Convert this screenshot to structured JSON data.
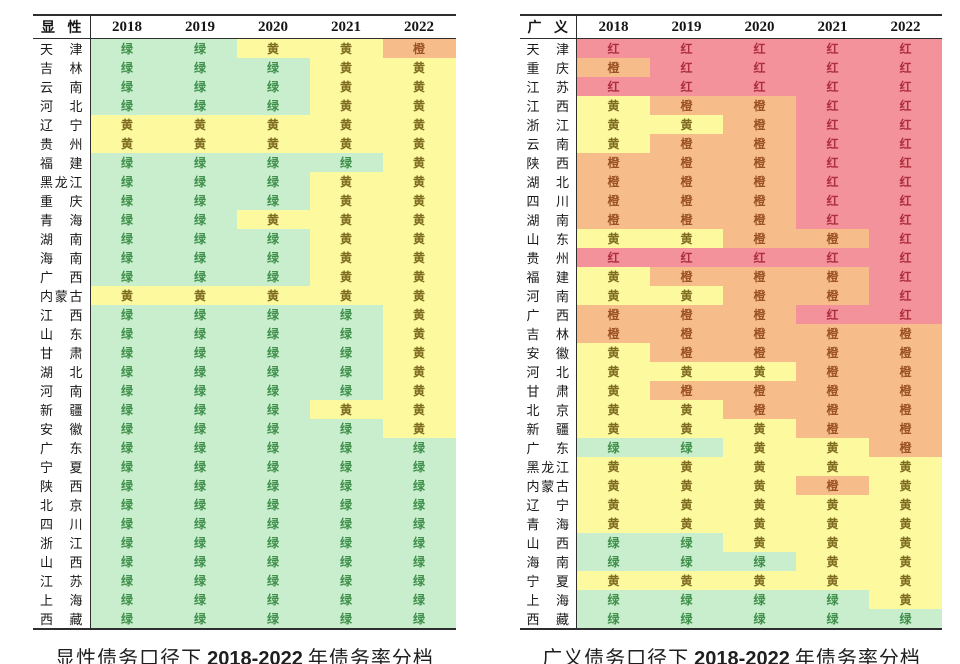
{
  "colors": {
    "绿": {
      "bg": "#c8eecd",
      "fg": "#3f8f4a"
    },
    "黄": {
      "bg": "#fcf99f",
      "fg": "#7d6b1f"
    },
    "橙": {
      "bg": "#f6bd8b",
      "fg": "#9b5226"
    },
    "红": {
      "bg": "#f4929b",
      "fg": "#ad2e3e"
    }
  },
  "chart_data": [
    {
      "type": "heatmap",
      "corner_label": "显性",
      "columns": [
        "2018",
        "2019",
        "2020",
        "2021",
        "2022"
      ],
      "legend": {
        "绿": "green",
        "黄": "yellow",
        "橙": "orange",
        "红": "red"
      },
      "caption": {
        "prefix": "显性债务口径下",
        "range": "2018-2022",
        "suffix": "年债务率分档"
      },
      "rows": [
        {
          "name": "天津",
          "grades": [
            "绿",
            "绿",
            "黄",
            "黄",
            "橙"
          ]
        },
        {
          "name": "吉林",
          "grades": [
            "绿",
            "绿",
            "绿",
            "黄",
            "黄"
          ]
        },
        {
          "name": "云南",
          "grades": [
            "绿",
            "绿",
            "绿",
            "黄",
            "黄"
          ]
        },
        {
          "name": "河北",
          "grades": [
            "绿",
            "绿",
            "绿",
            "黄",
            "黄"
          ]
        },
        {
          "name": "辽宁",
          "grades": [
            "黄",
            "黄",
            "黄",
            "黄",
            "黄"
          ]
        },
        {
          "name": "贵州",
          "grades": [
            "黄",
            "黄",
            "黄",
            "黄",
            "黄"
          ]
        },
        {
          "name": "福建",
          "grades": [
            "绿",
            "绿",
            "绿",
            "绿",
            "黄"
          ]
        },
        {
          "name": "黑龙江",
          "grades": [
            "绿",
            "绿",
            "绿",
            "黄",
            "黄"
          ]
        },
        {
          "name": "重庆",
          "grades": [
            "绿",
            "绿",
            "绿",
            "黄",
            "黄"
          ]
        },
        {
          "name": "青海",
          "grades": [
            "绿",
            "绿",
            "黄",
            "黄",
            "黄"
          ]
        },
        {
          "name": "湖南",
          "grades": [
            "绿",
            "绿",
            "绿",
            "黄",
            "黄"
          ]
        },
        {
          "name": "海南",
          "grades": [
            "绿",
            "绿",
            "绿",
            "黄",
            "黄"
          ]
        },
        {
          "name": "广西",
          "grades": [
            "绿",
            "绿",
            "绿",
            "黄",
            "黄"
          ]
        },
        {
          "name": "内蒙古",
          "grades": [
            "黄",
            "黄",
            "黄",
            "黄",
            "黄"
          ]
        },
        {
          "name": "江西",
          "grades": [
            "绿",
            "绿",
            "绿",
            "绿",
            "黄"
          ]
        },
        {
          "name": "山东",
          "grades": [
            "绿",
            "绿",
            "绿",
            "绿",
            "黄"
          ]
        },
        {
          "name": "甘肃",
          "grades": [
            "绿",
            "绿",
            "绿",
            "绿",
            "黄"
          ]
        },
        {
          "name": "湖北",
          "grades": [
            "绿",
            "绿",
            "绿",
            "绿",
            "黄"
          ]
        },
        {
          "name": "河南",
          "grades": [
            "绿",
            "绿",
            "绿",
            "绿",
            "黄"
          ]
        },
        {
          "name": "新疆",
          "grades": [
            "绿",
            "绿",
            "绿",
            "黄",
            "黄"
          ]
        },
        {
          "name": "安徽",
          "grades": [
            "绿",
            "绿",
            "绿",
            "绿",
            "黄"
          ]
        },
        {
          "name": "广东",
          "grades": [
            "绿",
            "绿",
            "绿",
            "绿",
            "绿"
          ]
        },
        {
          "name": "宁夏",
          "grades": [
            "绿",
            "绿",
            "绿",
            "绿",
            "绿"
          ]
        },
        {
          "name": "陕西",
          "grades": [
            "绿",
            "绿",
            "绿",
            "绿",
            "绿"
          ]
        },
        {
          "name": "北京",
          "grades": [
            "绿",
            "绿",
            "绿",
            "绿",
            "绿"
          ]
        },
        {
          "name": "四川",
          "grades": [
            "绿",
            "绿",
            "绿",
            "绿",
            "绿"
          ]
        },
        {
          "name": "浙江",
          "grades": [
            "绿",
            "绿",
            "绿",
            "绿",
            "绿"
          ]
        },
        {
          "name": "山西",
          "grades": [
            "绿",
            "绿",
            "绿",
            "绿",
            "绿"
          ]
        },
        {
          "name": "江苏",
          "grades": [
            "绿",
            "绿",
            "绿",
            "绿",
            "绿"
          ]
        },
        {
          "name": "上海",
          "grades": [
            "绿",
            "绿",
            "绿",
            "绿",
            "绿"
          ]
        },
        {
          "name": "西藏",
          "grades": [
            "绿",
            "绿",
            "绿",
            "绿",
            "绿"
          ]
        }
      ]
    },
    {
      "type": "heatmap",
      "corner_label": "广义",
      "columns": [
        "2018",
        "2019",
        "2020",
        "2021",
        "2022"
      ],
      "legend": {
        "绿": "green",
        "黄": "yellow",
        "橙": "orange",
        "红": "red"
      },
      "caption": {
        "prefix": "广义债务口径下",
        "range": "2018-2022",
        "suffix": "年债务率分档"
      },
      "rows": [
        {
          "name": "天津",
          "grades": [
            "红",
            "红",
            "红",
            "红",
            "红"
          ]
        },
        {
          "name": "重庆",
          "grades": [
            "橙",
            "红",
            "红",
            "红",
            "红"
          ]
        },
        {
          "name": "江苏",
          "grades": [
            "红",
            "红",
            "红",
            "红",
            "红"
          ]
        },
        {
          "name": "江西",
          "grades": [
            "黄",
            "橙",
            "橙",
            "红",
            "红"
          ]
        },
        {
          "name": "浙江",
          "grades": [
            "黄",
            "黄",
            "橙",
            "红",
            "红"
          ]
        },
        {
          "name": "云南",
          "grades": [
            "黄",
            "橙",
            "橙",
            "红",
            "红"
          ]
        },
        {
          "name": "陕西",
          "grades": [
            "橙",
            "橙",
            "橙",
            "红",
            "红"
          ]
        },
        {
          "name": "湖北",
          "grades": [
            "橙",
            "橙",
            "橙",
            "红",
            "红"
          ]
        },
        {
          "name": "四川",
          "grades": [
            "橙",
            "橙",
            "橙",
            "红",
            "红"
          ]
        },
        {
          "name": "湖南",
          "grades": [
            "橙",
            "橙",
            "橙",
            "红",
            "红"
          ]
        },
        {
          "name": "山东",
          "grades": [
            "黄",
            "黄",
            "橙",
            "橙",
            "红"
          ]
        },
        {
          "name": "贵州",
          "grades": [
            "红",
            "红",
            "红",
            "红",
            "红"
          ]
        },
        {
          "name": "福建",
          "grades": [
            "黄",
            "橙",
            "橙",
            "橙",
            "红"
          ]
        },
        {
          "name": "河南",
          "grades": [
            "黄",
            "黄",
            "橙",
            "橙",
            "红"
          ]
        },
        {
          "name": "广西",
          "grades": [
            "橙",
            "橙",
            "橙",
            "红",
            "红"
          ]
        },
        {
          "name": "吉林",
          "grades": [
            "橙",
            "橙",
            "橙",
            "橙",
            "橙"
          ]
        },
        {
          "name": "安徽",
          "grades": [
            "黄",
            "橙",
            "橙",
            "橙",
            "橙"
          ]
        },
        {
          "name": "河北",
          "grades": [
            "黄",
            "黄",
            "黄",
            "橙",
            "橙"
          ]
        },
        {
          "name": "甘肃",
          "grades": [
            "黄",
            "橙",
            "橙",
            "橙",
            "橙"
          ]
        },
        {
          "name": "北京",
          "grades": [
            "黄",
            "黄",
            "橙",
            "橙",
            "橙"
          ]
        },
        {
          "name": "新疆",
          "grades": [
            "黄",
            "黄",
            "黄",
            "橙",
            "橙"
          ]
        },
        {
          "name": "广东",
          "grades": [
            "绿",
            "绿",
            "黄",
            "黄",
            "橙"
          ]
        },
        {
          "name": "黑龙江",
          "grades": [
            "黄",
            "黄",
            "黄",
            "黄",
            "黄"
          ]
        },
        {
          "name": "内蒙古",
          "grades": [
            "黄",
            "黄",
            "黄",
            "橙",
            "黄"
          ]
        },
        {
          "name": "辽宁",
          "grades": [
            "黄",
            "黄",
            "黄",
            "黄",
            "黄"
          ]
        },
        {
          "name": "青海",
          "grades": [
            "黄",
            "黄",
            "黄",
            "黄",
            "黄"
          ]
        },
        {
          "name": "山西",
          "grades": [
            "绿",
            "绿",
            "黄",
            "黄",
            "黄"
          ]
        },
        {
          "name": "海南",
          "grades": [
            "绿",
            "绿",
            "绿",
            "黄",
            "黄"
          ]
        },
        {
          "name": "宁夏",
          "grades": [
            "黄",
            "黄",
            "黄",
            "黄",
            "黄"
          ]
        },
        {
          "name": "上海",
          "grades": [
            "绿",
            "绿",
            "绿",
            "绿",
            "黄"
          ]
        },
        {
          "name": "西藏",
          "grades": [
            "绿",
            "绿",
            "绿",
            "绿",
            "绿"
          ]
        }
      ]
    }
  ]
}
